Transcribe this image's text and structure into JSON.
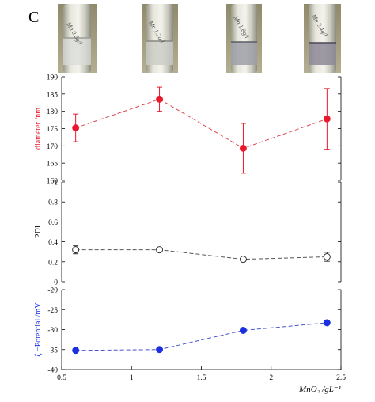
{
  "panel_label": "C",
  "vial_labels": [
    "Mn 0.6g/l",
    "Mn 1.2g/l",
    "Mn 1.8g/l",
    "Mn 2.4g/l"
  ],
  "chart_data": [
    {
      "type": "scatter",
      "x": [
        0.6,
        1.2,
        1.8,
        2.4
      ],
      "series": [
        {
          "values": [
            175.2,
            183.5,
            169.3,
            177.8
          ],
          "errors": [
            4.0,
            3.5,
            7.2,
            8.8
          ],
          "color": "#e8192c",
          "line_color": "#d9464f",
          "marker": "filled-circle"
        }
      ],
      "ylabel": "diameter /nm",
      "ylim": [
        160,
        190
      ],
      "yticks": [
        160,
        165,
        170,
        175,
        180,
        185,
        190
      ],
      "xlim": [
        0.5,
        2.5
      ],
      "grid": false
    },
    {
      "type": "scatter",
      "x": [
        0.6,
        1.2,
        1.8,
        2.4
      ],
      "series": [
        {
          "values": [
            0.32,
            0.32,
            0.225,
            0.25
          ],
          "errors": [
            0.04,
            0.015,
            0.015,
            0.045
          ],
          "color": "#333333",
          "line_color": "#555555",
          "marker": "open-circle"
        }
      ],
      "ylabel": "PDI",
      "ylim": [
        0,
        1
      ],
      "yticks": [
        0,
        0.2,
        0.4,
        0.6,
        0.8,
        1
      ],
      "xlim": [
        0.5,
        2.5
      ],
      "grid": false
    },
    {
      "type": "scatter",
      "x": [
        0.6,
        1.2,
        1.8,
        2.4
      ],
      "series": [
        {
          "values": [
            -35.2,
            -35.0,
            -30.2,
            -28.3
          ],
          "errors": [
            0,
            0,
            0,
            0
          ],
          "color": "#1a2fe0",
          "line_color": "#4a55cc",
          "marker": "filled-circle"
        }
      ],
      "ylabel": "ζ −Potential /mV",
      "ylim": [
        -40,
        -20
      ],
      "yticks": [
        -40,
        -35,
        -30,
        -25,
        -20
      ],
      "xlim": [
        0.5,
        2.5
      ],
      "xticks": [
        0.5,
        1,
        1.5,
        2,
        2.5
      ],
      "xlabel": "MnO₂ /gL⁻¹",
      "grid": false
    }
  ]
}
